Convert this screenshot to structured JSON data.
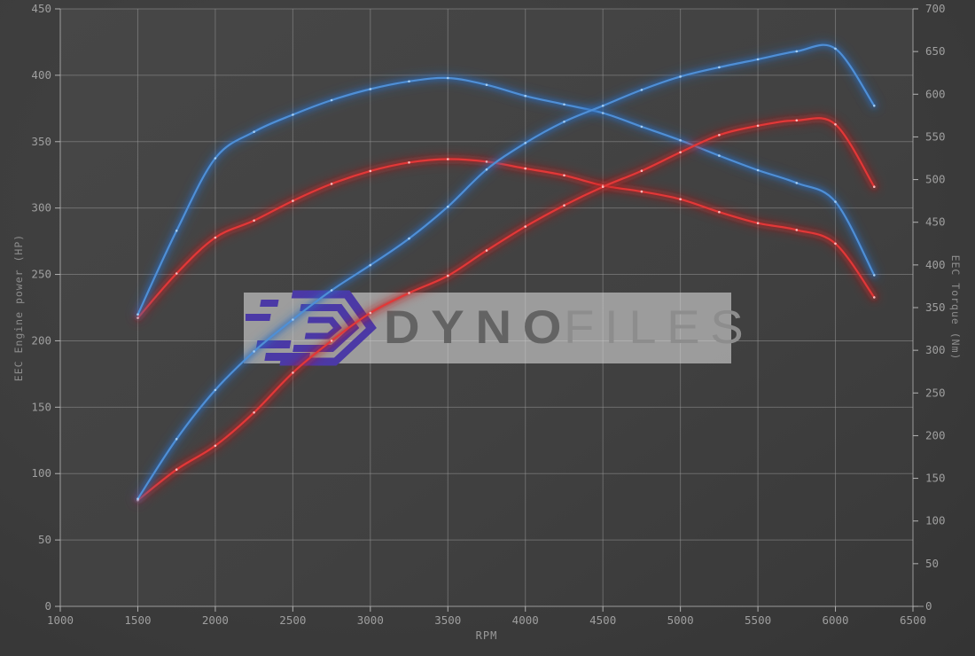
{
  "page": {
    "background": "#3b3b3b"
  },
  "watermark": {
    "brand_primary": "Dyno",
    "brand_secondary": "Files",
    "logo_color": "#4b39a6",
    "band_color": "#dedede"
  },
  "chart_data": {
    "type": "line",
    "title": "",
    "xlabel": "RPM",
    "ylabel_left": "EEC Engine power (HP)",
    "ylabel_right": "EEC Torque (Nm)",
    "xlim": [
      1000,
      6500
    ],
    "ylim_left": [
      0,
      450
    ],
    "ylim_right": [
      0,
      700
    ],
    "grid": true,
    "legend": "none",
    "x_ticks": [
      1000,
      1500,
      2000,
      2500,
      3000,
      3500,
      4000,
      4500,
      5000,
      5500,
      6000,
      6500
    ],
    "y_ticks_left": [
      0,
      50,
      100,
      150,
      200,
      250,
      300,
      350,
      400,
      450
    ],
    "y_ticks_right": [
      0,
      50,
      100,
      150,
      200,
      250,
      300,
      350,
      400,
      450,
      500,
      550,
      600,
      650,
      700
    ],
    "x": [
      1500,
      1750,
      2000,
      2250,
      2500,
      2750,
      3000,
      3250,
      3500,
      3750,
      4000,
      4250,
      4500,
      4750,
      5000,
      5250,
      5500,
      5750,
      6000,
      6250
    ],
    "series": [
      {
        "name": "torque-red",
        "axis": "right",
        "unit": "Nm",
        "color": "#e23838",
        "glow": "#c21d1d",
        "marker": "#ffc9c9",
        "values": [
          338,
          390,
          432,
          452,
          475,
          495,
          510,
          520,
          524,
          521,
          513,
          505,
          493,
          486,
          477,
          462,
          449,
          441,
          425,
          362
        ]
      },
      {
        "name": "torque-blue",
        "axis": "right",
        "unit": "Nm",
        "color": "#4f8fd6",
        "glow": "#2c6cbe",
        "marker": "#acd4f7",
        "values": [
          342,
          440,
          525,
          556,
          576,
          593,
          606,
          615,
          619,
          611,
          598,
          588,
          578,
          562,
          546,
          528,
          511,
          496,
          474,
          388
        ]
      },
      {
        "name": "power-red",
        "axis": "left",
        "unit": "HP",
        "color": "#e23838",
        "glow": "#c21d1d",
        "marker": "#ffc9c9",
        "values": [
          80,
          103,
          121,
          146,
          176,
          200,
          221,
          236,
          249,
          268,
          286,
          302,
          316,
          328,
          342,
          355,
          362,
          366,
          363,
          316
        ]
      },
      {
        "name": "power-blue",
        "axis": "left",
        "unit": "HP",
        "color": "#4f8fd6",
        "glow": "#2c6cbe",
        "marker": "#acd4f7",
        "values": [
          81,
          126,
          163,
          192,
          216,
          238,
          257,
          277,
          301,
          329,
          349,
          365,
          377,
          389,
          399,
          406,
          412,
          418,
          420,
          377
        ]
      }
    ]
  }
}
